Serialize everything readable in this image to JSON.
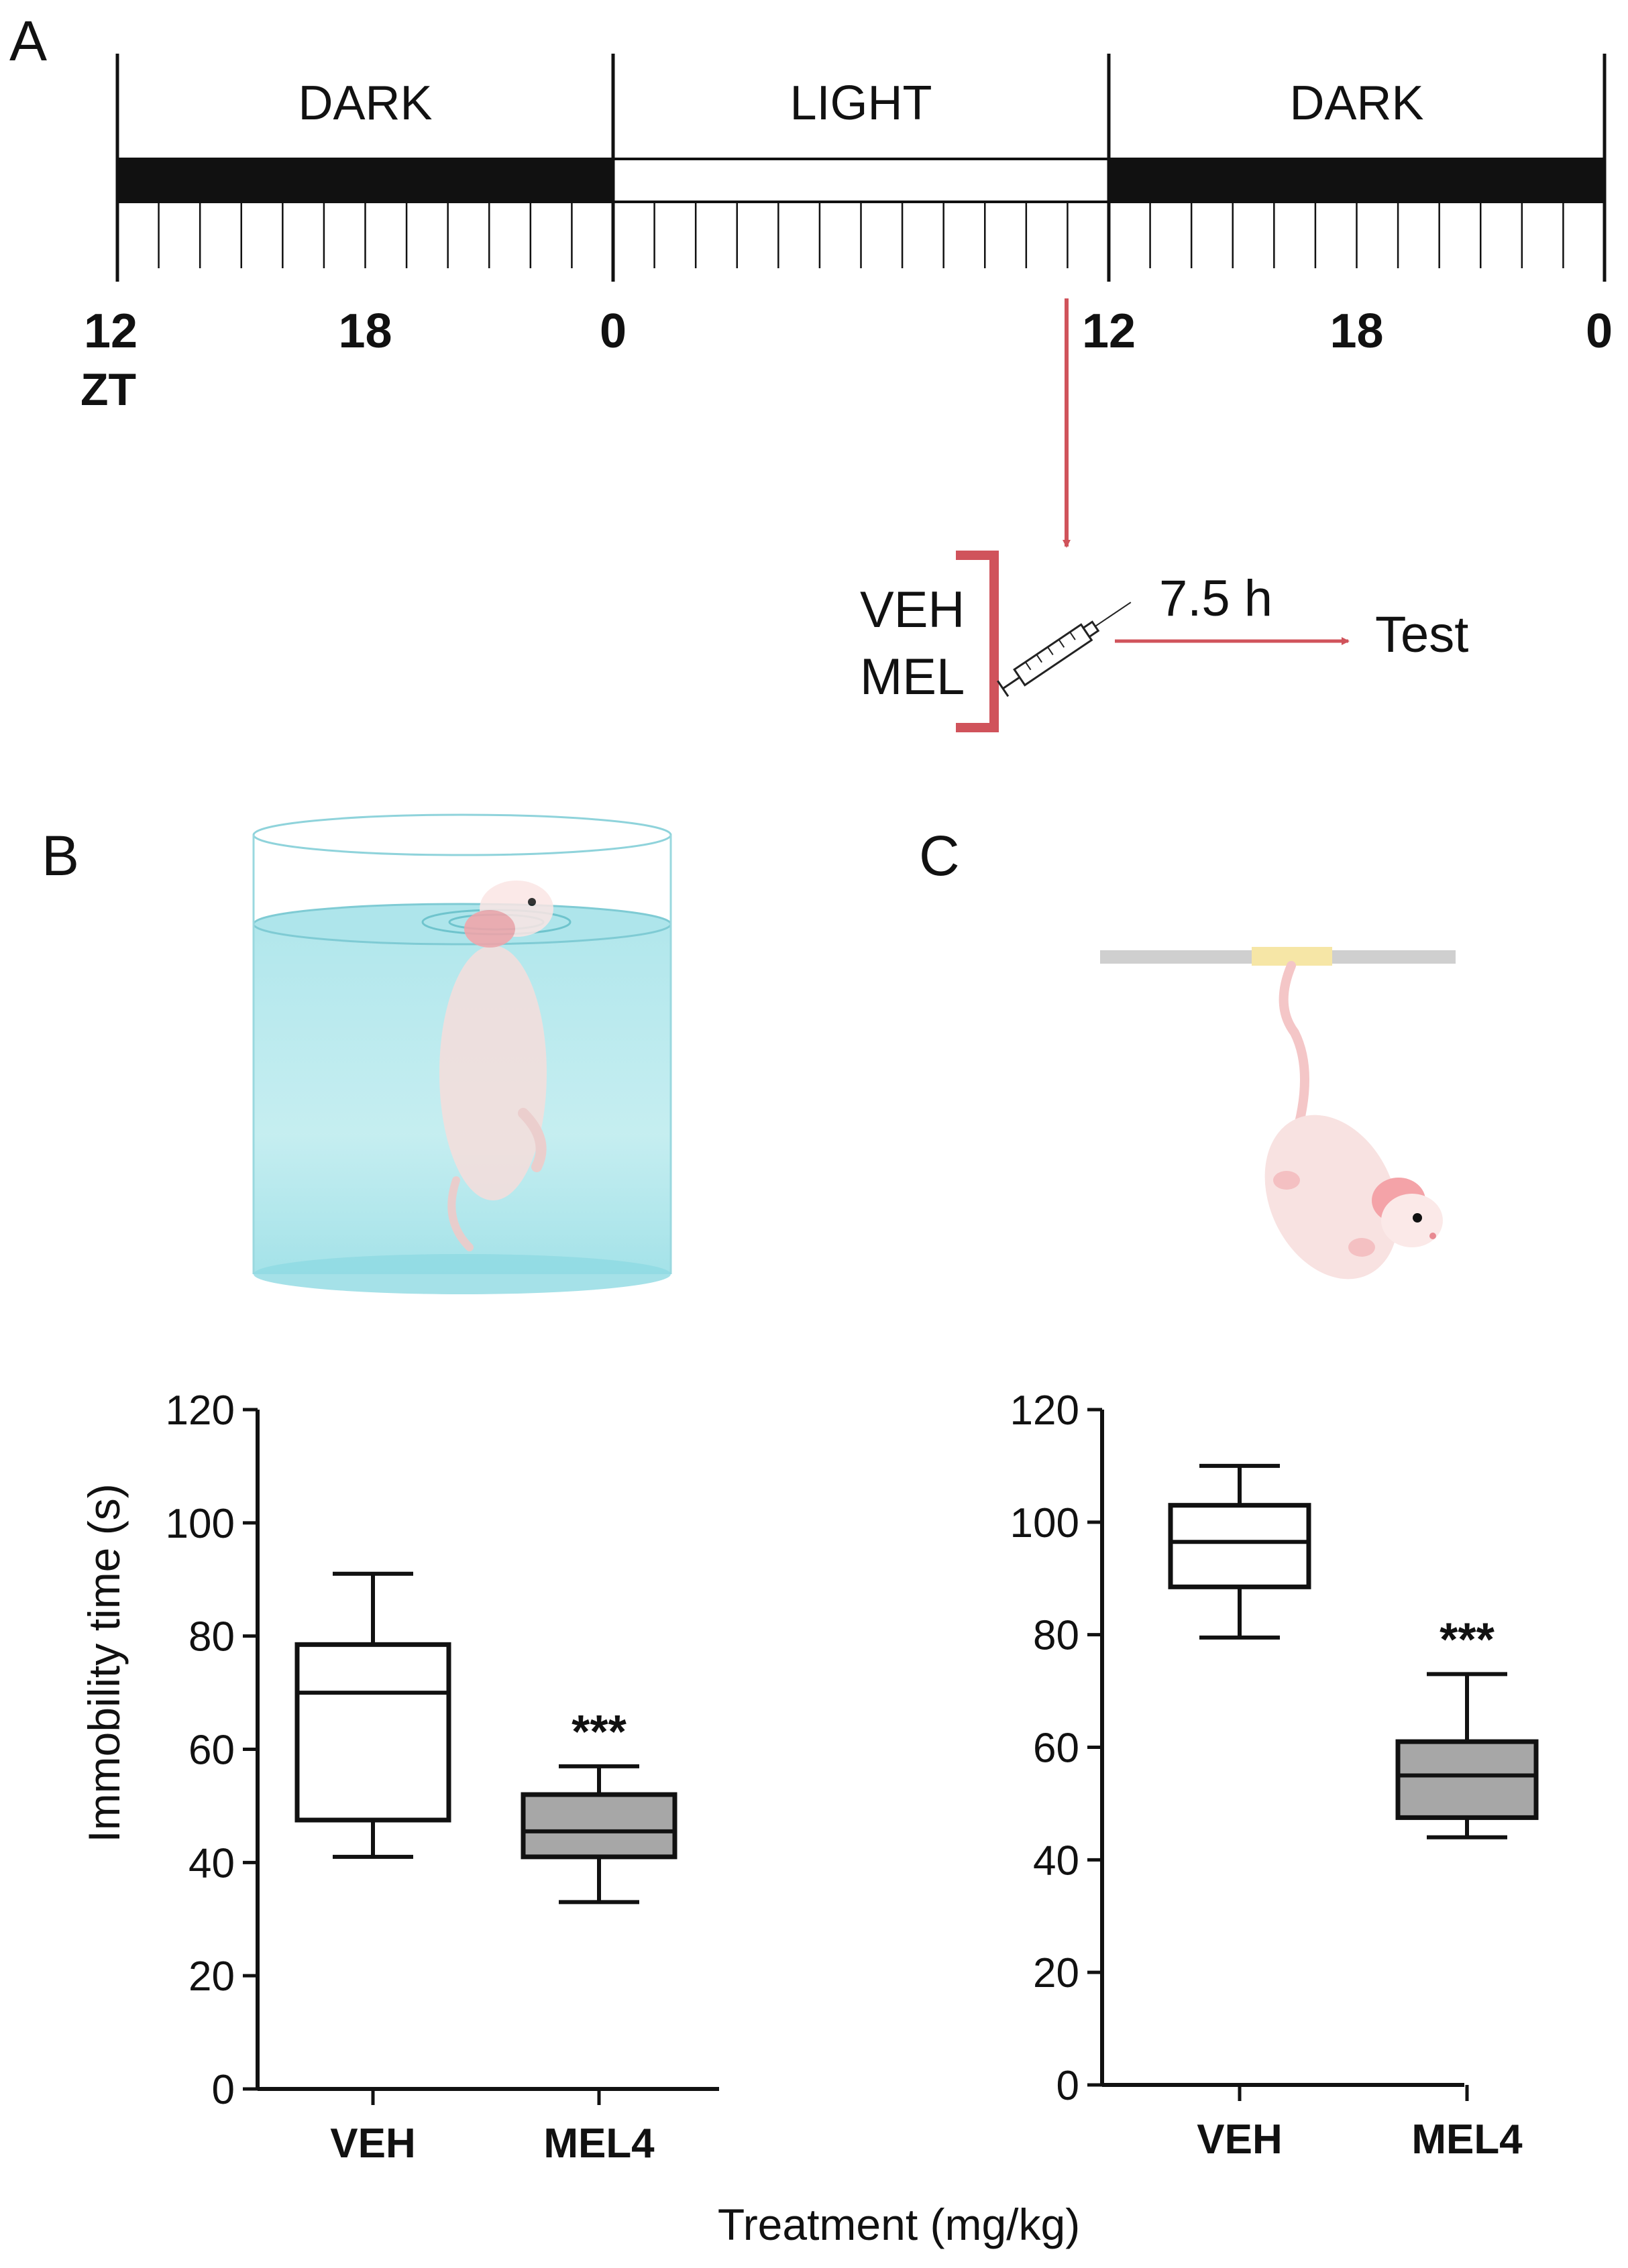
{
  "panel_labels": {
    "a": "A",
    "b": "B",
    "c": "C"
  },
  "timeline": {
    "phases": [
      {
        "label": "DARK",
        "fill": "#111111"
      },
      {
        "label": "LIGHT",
        "fill": "#ffffff"
      },
      {
        "label": "DARK",
        "fill": "#111111"
      }
    ],
    "hour_labels": [
      {
        "text": "12",
        "hour": 0
      },
      {
        "text": "18",
        "hour": 6
      },
      {
        "text": "0",
        "hour": 12
      },
      {
        "text": "12",
        "hour": 24
      },
      {
        "text": "18",
        "hour": 30
      },
      {
        "text": "0",
        "hour": 36
      }
    ],
    "axis_label": "ZT",
    "total_hours": 36,
    "injection_hour": 23
  },
  "protocol": {
    "treatments": [
      "VEH",
      "MEL"
    ],
    "interval": "7.5 h",
    "outcome": "Test",
    "accent_color": "#d0535b"
  },
  "y_axis_label": "Immobility time (s)",
  "x_axis_label": "Treatment (mg/kg)",
  "chart_data": [
    {
      "type": "box",
      "panel": "B",
      "categories": [
        "VEH",
        "MEL4"
      ],
      "ylim": [
        0,
        120
      ],
      "yticks": [
        0,
        20,
        40,
        60,
        80,
        100,
        120
      ],
      "ylabel": "Immobility time (s)",
      "xlabel": "Treatment (mg/kg)",
      "series": [
        {
          "name": "VEH",
          "min": 41,
          "q1": 47.5,
          "median": 70,
          "q3": 78.5,
          "max": 91,
          "fill": "#ffffff",
          "annotation": ""
        },
        {
          "name": "MEL4",
          "min": 33,
          "q1": 41,
          "median": 45.5,
          "q3": 52,
          "max": 57,
          "fill": "#a7a7a7",
          "annotation": "***"
        }
      ]
    },
    {
      "type": "box",
      "panel": "C",
      "categories": [
        "VEH",
        "MEL4"
      ],
      "ylim": [
        0,
        120
      ],
      "yticks": [
        0,
        20,
        40,
        60,
        80,
        100,
        120
      ],
      "ylabel": "Immobility time (s)",
      "xlabel": "Treatment (mg/kg)",
      "series": [
        {
          "name": "VEH",
          "min": 79.5,
          "q1": 88.5,
          "median": 96.5,
          "q3": 103,
          "max": 110,
          "fill": "#ffffff",
          "annotation": ""
        },
        {
          "name": "MEL4",
          "min": 44,
          "q1": 47.5,
          "median": 55,
          "q3": 61,
          "max": 73,
          "fill": "#a7a7a7",
          "annotation": "***"
        }
      ]
    }
  ]
}
